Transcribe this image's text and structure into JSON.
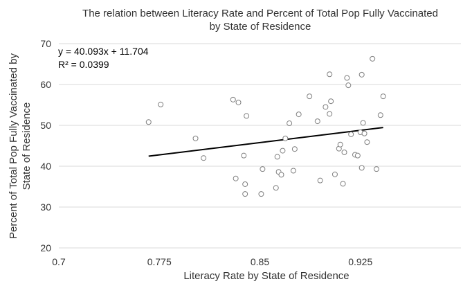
{
  "chart_data": {
    "type": "scatter",
    "title_lines": [
      "The relation between Literacy Rate and Percent of Total Pop Fully Vaccinated",
      "by State of Residence"
    ],
    "xlabel": "Literacy Rate by State of Residence",
    "ylabel_lines": [
      "Percent of Total Pop Fully Vaccinated by",
      "State of Residence"
    ],
    "xlim": [
      0.7,
      1.0
    ],
    "ylim": [
      20,
      70
    ],
    "x_ticks": [
      0.7,
      0.775,
      0.85,
      0.925
    ],
    "x_tick_labels": [
      "0.7",
      "0.775",
      "0.85",
      "0.925"
    ],
    "y_ticks": [
      20,
      30,
      40,
      50,
      60,
      70
    ],
    "y_tick_labels": [
      "20",
      "30",
      "40",
      "50",
      "60",
      "70"
    ],
    "grid": "horizontal",
    "legend": "none",
    "points": [
      {
        "x": 0.767,
        "y": 50.8
      },
      {
        "x": 0.776,
        "y": 55.1
      },
      {
        "x": 0.802,
        "y": 46.8
      },
      {
        "x": 0.808,
        "y": 42.0
      },
      {
        "x": 0.83,
        "y": 56.3
      },
      {
        "x": 0.834,
        "y": 55.6
      },
      {
        "x": 0.84,
        "y": 52.3
      },
      {
        "x": 0.838,
        "y": 42.6
      },
      {
        "x": 0.832,
        "y": 37.0
      },
      {
        "x": 0.839,
        "y": 35.6
      },
      {
        "x": 0.839,
        "y": 33.2
      },
      {
        "x": 0.851,
        "y": 33.2
      },
      {
        "x": 0.852,
        "y": 39.3
      },
      {
        "x": 0.862,
        "y": 34.7
      },
      {
        "x": 0.864,
        "y": 38.6
      },
      {
        "x": 0.866,
        "y": 37.9
      },
      {
        "x": 0.863,
        "y": 42.3
      },
      {
        "x": 0.867,
        "y": 43.8
      },
      {
        "x": 0.869,
        "y": 46.8
      },
      {
        "x": 0.872,
        "y": 50.5
      },
      {
        "x": 0.876,
        "y": 44.2
      },
      {
        "x": 0.875,
        "y": 38.9
      },
      {
        "x": 0.879,
        "y": 52.7
      },
      {
        "x": 0.887,
        "y": 57.1
      },
      {
        "x": 0.893,
        "y": 51.0
      },
      {
        "x": 0.895,
        "y": 36.5
      },
      {
        "x": 0.899,
        "y": 54.5
      },
      {
        "x": 0.902,
        "y": 52.8
      },
      {
        "x": 0.903,
        "y": 55.9
      },
      {
        "x": 0.902,
        "y": 62.5
      },
      {
        "x": 0.906,
        "y": 38.0
      },
      {
        "x": 0.909,
        "y": 44.3
      },
      {
        "x": 0.91,
        "y": 45.3
      },
      {
        "x": 0.912,
        "y": 35.7
      },
      {
        "x": 0.913,
        "y": 43.4
      },
      {
        "x": 0.915,
        "y": 61.6
      },
      {
        "x": 0.916,
        "y": 59.8
      },
      {
        "x": 0.918,
        "y": 47.8
      },
      {
        "x": 0.921,
        "y": 42.8
      },
      {
        "x": 0.923,
        "y": 42.6
      },
      {
        "x": 0.925,
        "y": 48.3
      },
      {
        "x": 0.926,
        "y": 62.4
      },
      {
        "x": 0.926,
        "y": 39.6
      },
      {
        "x": 0.927,
        "y": 50.6
      },
      {
        "x": 0.928,
        "y": 48.0
      },
      {
        "x": 0.93,
        "y": 45.9
      },
      {
        "x": 0.934,
        "y": 66.3
      },
      {
        "x": 0.937,
        "y": 39.3
      },
      {
        "x": 0.94,
        "y": 52.5
      },
      {
        "x": 0.942,
        "y": 57.1
      }
    ],
    "trendline": {
      "equation": "y = 40.093x + 11.704",
      "r_squared": "R² = 0.0399",
      "slope": 40.093,
      "intercept": 11.704,
      "x_range": [
        0.767,
        0.942
      ]
    }
  }
}
